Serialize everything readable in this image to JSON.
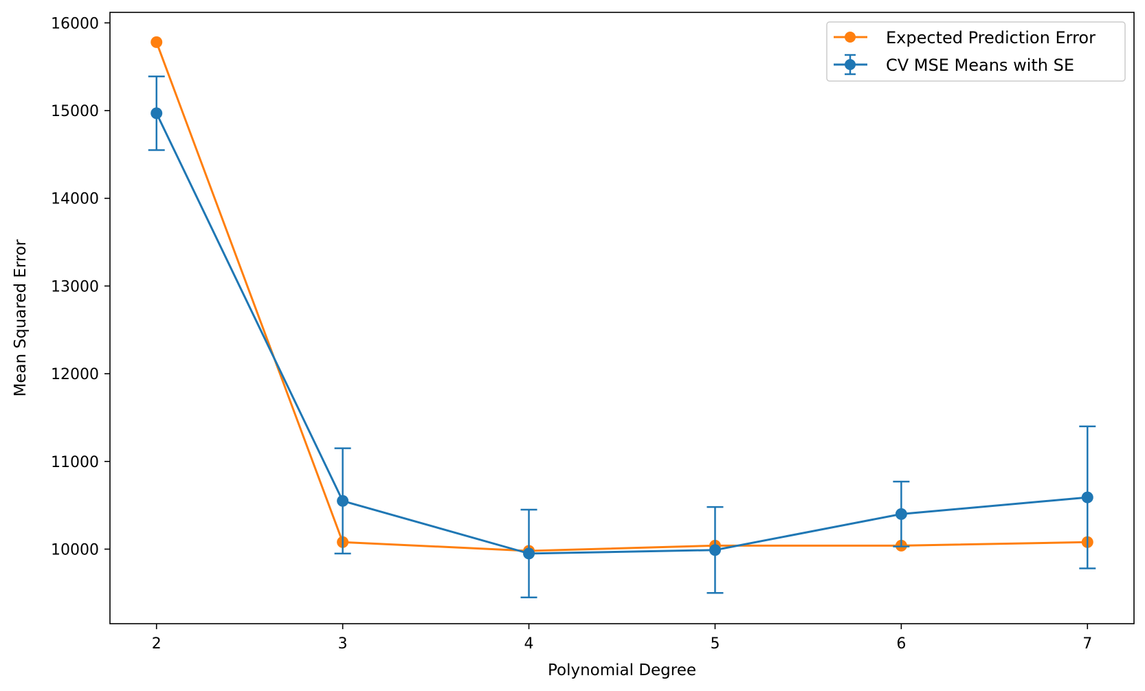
{
  "chart_data": {
    "type": "line",
    "xlabel": "Polynomial Degree",
    "ylabel": "Mean Squared Error",
    "x": [
      2,
      3,
      4,
      5,
      6,
      7
    ],
    "xlim": [
      1.75,
      7.25
    ],
    "ylim": [
      9150,
      16120
    ],
    "xticks": [
      "2",
      "3",
      "4",
      "5",
      "6",
      "7"
    ],
    "yticks": [
      "10000",
      "11000",
      "12000",
      "13000",
      "14000",
      "15000",
      "16000"
    ],
    "legend_position": "upper right",
    "grid": false,
    "series": [
      {
        "name": "Expected Prediction Error",
        "color": "#ff7f0e",
        "values": [
          15780,
          10080,
          9980,
          10040,
          10040,
          10080
        ]
      },
      {
        "name": "CV MSE Means with SE",
        "color": "#1f77b4",
        "values": [
          14970,
          10550,
          9950,
          9990,
          10400,
          10590
        ],
        "error": [
          420,
          600,
          500,
          490,
          370,
          810
        ]
      }
    ]
  }
}
